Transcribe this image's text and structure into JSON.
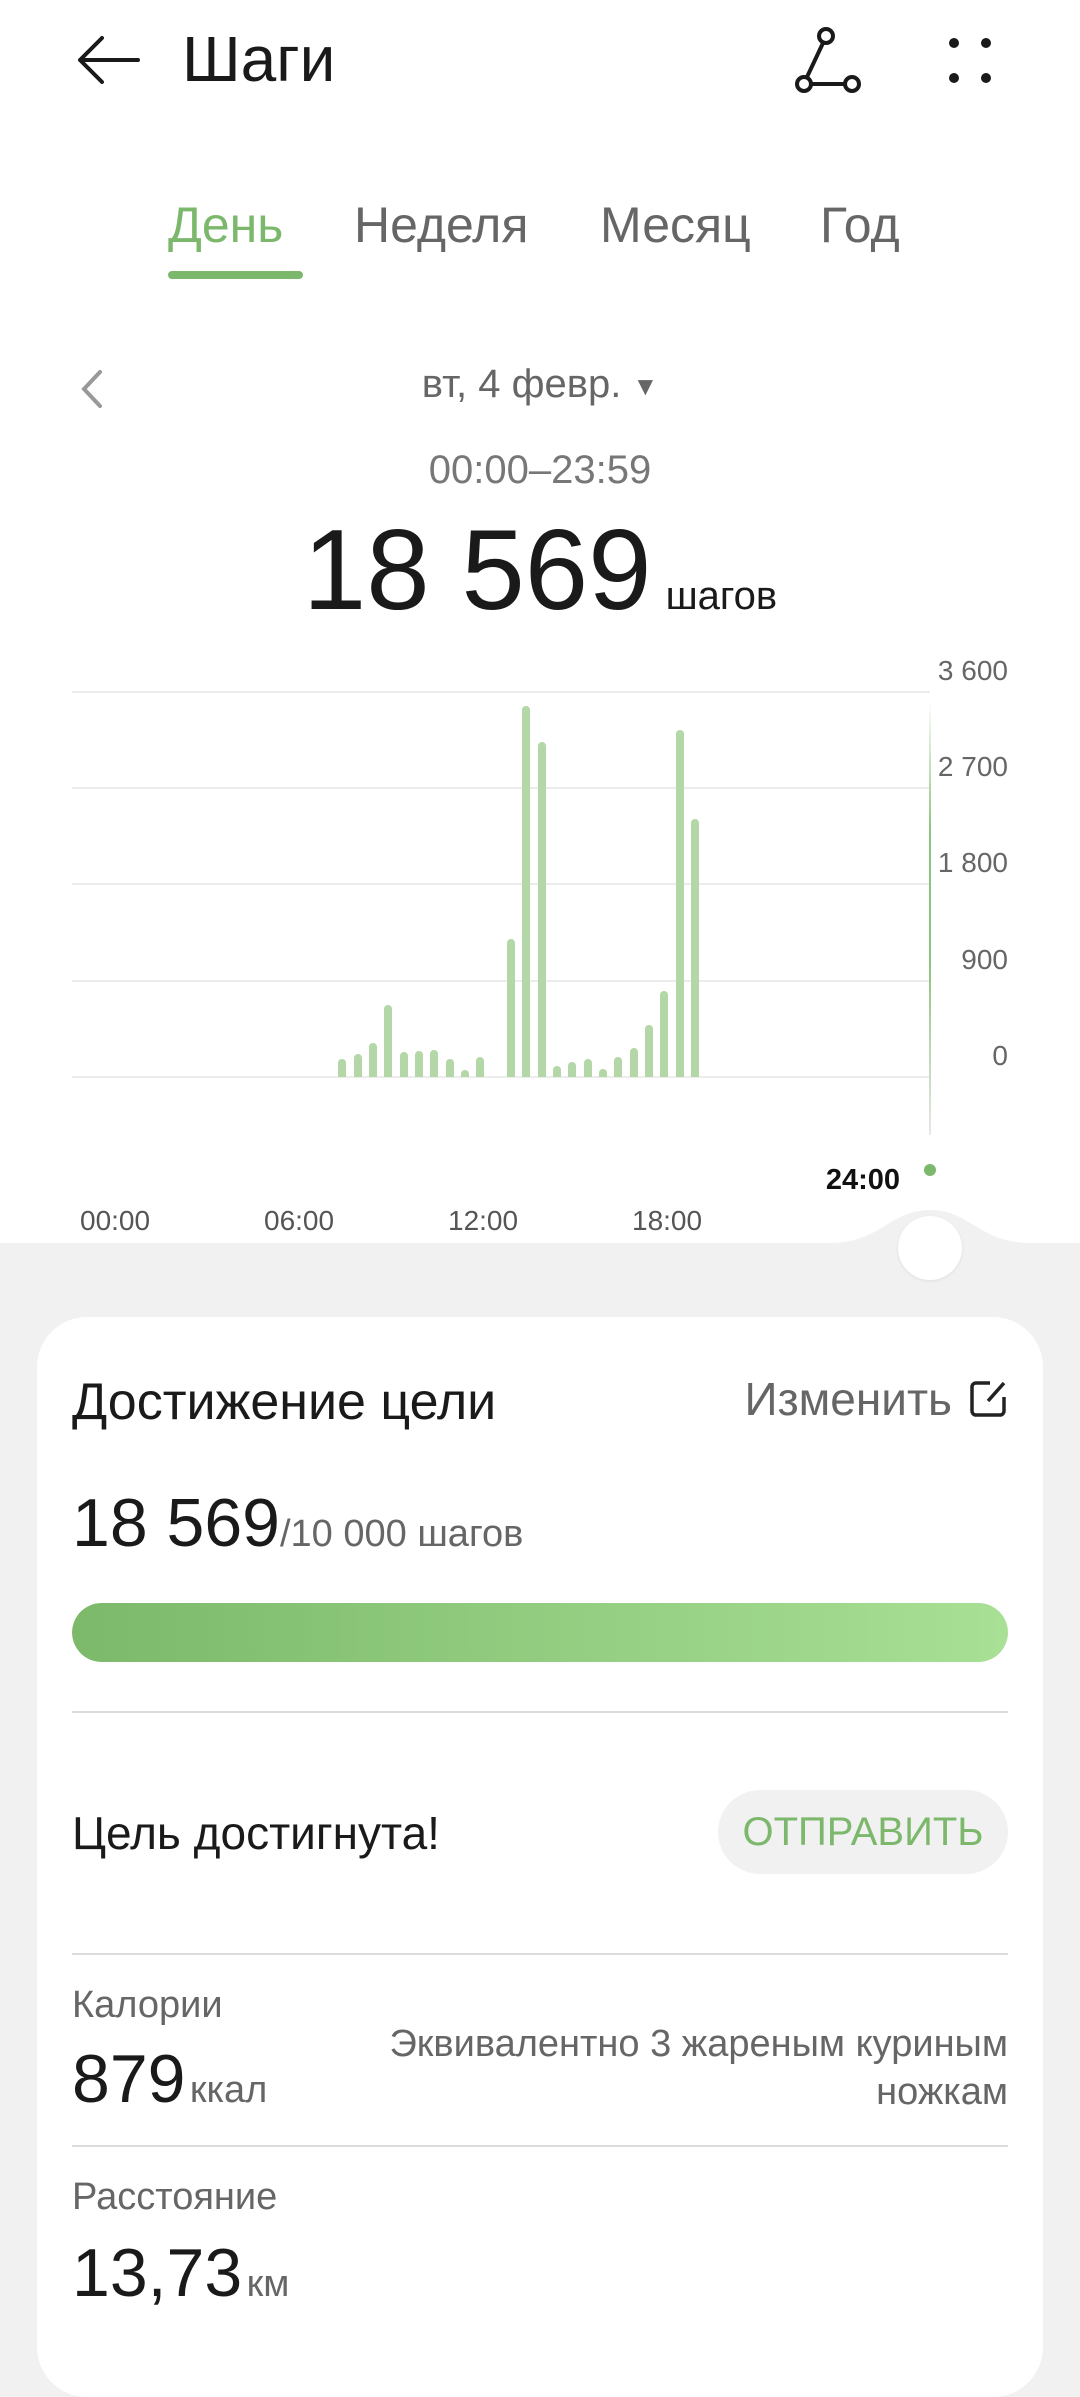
{
  "header": {
    "title": "Шаги",
    "back_icon": "arrow-left-icon",
    "share_icon": "share-nodes-icon",
    "more_icon": "more-dots-icon"
  },
  "tabs": [
    {
      "label": "День",
      "active": true
    },
    {
      "label": "Неделя",
      "active": false
    },
    {
      "label": "Месяц",
      "active": false
    },
    {
      "label": "Год",
      "active": false
    }
  ],
  "date": {
    "label": "вт, 4 февр.",
    "range": "00:00–23:59"
  },
  "summary": {
    "steps": "18 569",
    "unit": "шагов"
  },
  "chart_data": {
    "type": "bar",
    "bin_minutes": 30,
    "x_tick_labels": [
      "00:00",
      "06:00",
      "12:00",
      "18:00"
    ],
    "y_tick_labels": [
      "3 600",
      "2 700",
      "1 800",
      "900",
      "0"
    ],
    "ylim": [
      0,
      3600
    ],
    "grid": true,
    "cursor_label": "24:00",
    "color": "#b3d7a6",
    "x": [
      "07:00",
      "07:30",
      "08:00",
      "08:30",
      "09:00",
      "09:30",
      "10:00",
      "10:30",
      "11:00",
      "11:30",
      "12:00",
      "12:30",
      "13:00",
      "13:30",
      "14:00",
      "14:30",
      "15:00",
      "15:30",
      "16:00",
      "16:30",
      "17:00",
      "17:30",
      "18:00",
      "18:30"
    ],
    "values": [
      165,
      214,
      318,
      668,
      232,
      240,
      254,
      168,
      68,
      189,
      0,
      1286,
      3461,
      3125,
      107,
      139,
      164,
      75,
      186,
      271,
      482,
      800,
      3239,
      2407
    ]
  },
  "goal": {
    "title": "Достижение цели",
    "edit_label": "Изменить",
    "current": "18 569",
    "target": "/10 000 шагов",
    "progress_percent": 100,
    "status": "Цель достигнута!",
    "send_label": "ОТПРАВИТЬ",
    "accent": "#7cb86c"
  },
  "calories": {
    "label": "Калории",
    "value": "879",
    "unit": "ккал",
    "equivalent_line1": "Эквивалентно 3 жареным куриным",
    "equivalent_line2": "ножкам"
  },
  "distance": {
    "label": "Расстояние",
    "value": "13,73",
    "unit": "км"
  }
}
